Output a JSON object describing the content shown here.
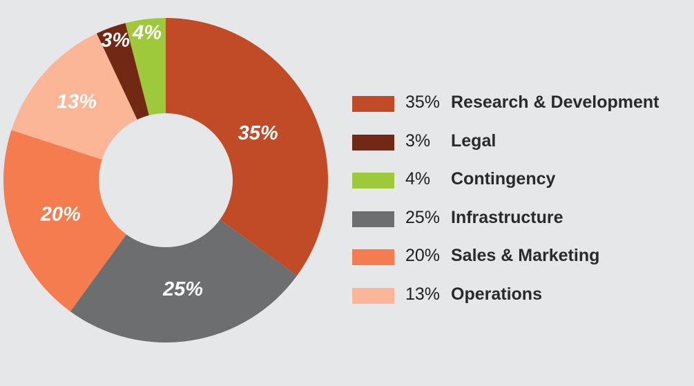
{
  "chart_data": {
    "type": "pie",
    "variant": "donut",
    "start": "top, clockwise",
    "slices": [
      {
        "label": "Research & Development",
        "value": 35,
        "value_label": "35%",
        "color": "#c14a27"
      },
      {
        "label": "Infrastructure",
        "value": 25,
        "value_label": "25%",
        "color": "#6d6e70"
      },
      {
        "label": "Sales & Marketing",
        "value": 20,
        "value_label": "20%",
        "color": "#f47c4e"
      },
      {
        "label": "Operations",
        "value": 13,
        "value_label": "13%",
        "color": "#fbb697"
      },
      {
        "label": "Legal",
        "value": 3,
        "value_label": "3%",
        "color": "#722914"
      },
      {
        "label": "Contingency",
        "value": 4,
        "value_label": "4%",
        "color": "#9ec93a"
      }
    ],
    "legend": {
      "placement": "right",
      "entries": [
        {
          "pct": "35%",
          "name": "Research & Development",
          "color": "#c14a27"
        },
        {
          "pct": "3%",
          "name": "Legal",
          "color": "#722914"
        },
        {
          "pct": "4%",
          "name": "Contingency",
          "color": "#9ec93a"
        },
        {
          "pct": "25%",
          "name": "Infrastructure",
          "color": "#6d6e70"
        },
        {
          "pct": "20%",
          "name": "Sales & Marketing",
          "color": "#f47c4e"
        },
        {
          "pct": "13%",
          "name": "Operations",
          "color": "#fbb697"
        }
      ]
    }
  },
  "colors": {
    "background": "#e6e7e8",
    "label_text": "#ffffff"
  }
}
